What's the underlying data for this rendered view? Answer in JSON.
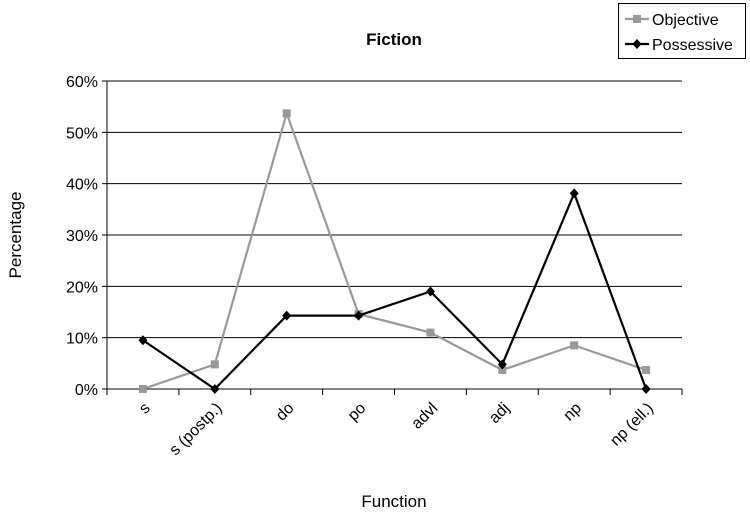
{
  "chart_data": {
    "type": "line",
    "title": "Fiction",
    "xlabel": "Function",
    "ylabel": "Percentage",
    "categories": [
      "s",
      "s (postp.)",
      "do",
      "po",
      "advl",
      "adj",
      "np",
      "np (ell.)"
    ],
    "y_ticks": [
      "0%",
      "10%",
      "20%",
      "30%",
      "40%",
      "50%",
      "60%"
    ],
    "ylim": [
      0,
      60
    ],
    "grid": "horizontal",
    "legend_position": "top-right",
    "series": [
      {
        "name": "Objective",
        "color": "#999999",
        "marker": "square",
        "values": [
          0,
          4.8,
          53.7,
          14.6,
          11,
          3.7,
          8.5,
          3.7
        ]
      },
      {
        "name": "Possessive",
        "color": "#000000",
        "marker": "diamond",
        "values": [
          9.5,
          0,
          14.3,
          14.3,
          19,
          4.8,
          38.1,
          0
        ]
      }
    ]
  }
}
